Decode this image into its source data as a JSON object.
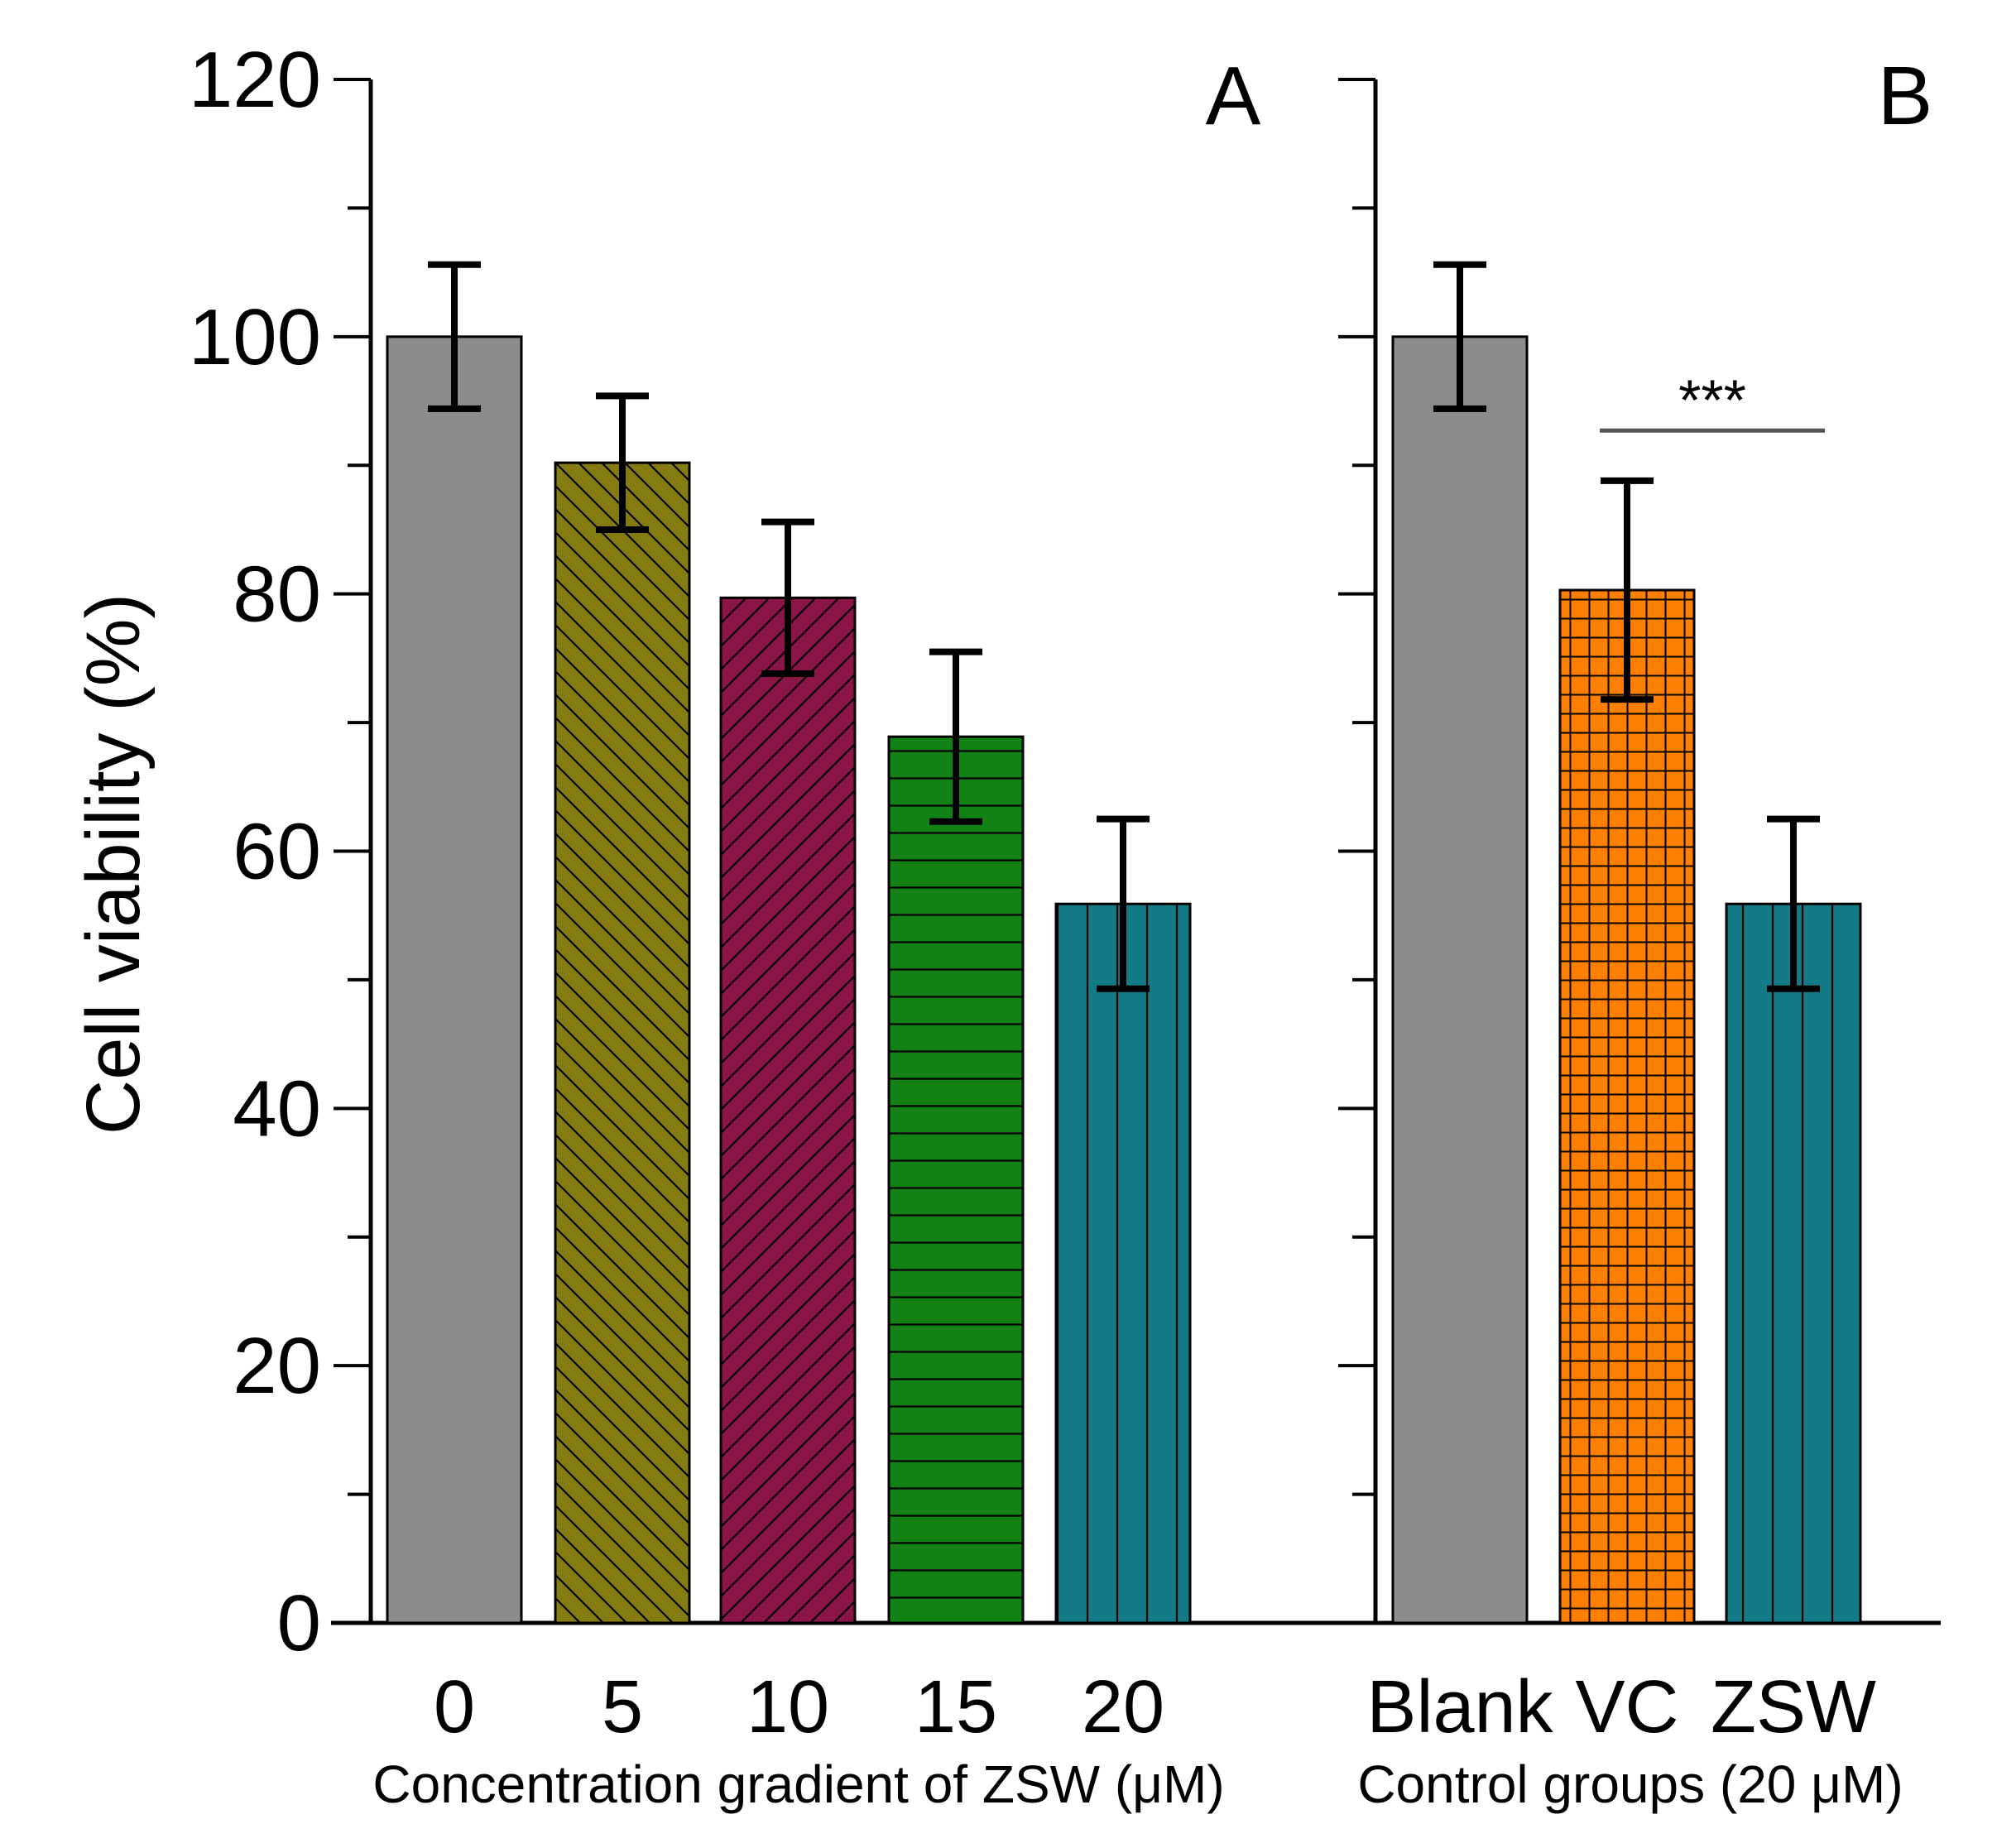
{
  "chart_data": {
    "type": "bar",
    "ylabel": "Cell viability (%)",
    "ylim": [
      0,
      120
    ],
    "yticks": [
      0,
      20,
      40,
      60,
      80,
      100,
      120
    ],
    "ytick_labels": [
      "0",
      "20",
      "40",
      "60",
      "80",
      "100",
      "120"
    ],
    "panels": [
      {
        "id": "A",
        "letter": "A",
        "xlabel": "Concentration gradient of ZSW (μM)",
        "categories": [
          "0",
          "5",
          "10",
          "15",
          "20"
        ],
        "values": [
          100,
          90.2,
          79.7,
          68.9,
          55.9
        ],
        "errors": [
          5.6,
          5.2,
          5.9,
          6.6,
          6.6
        ],
        "colors": [
          "#8c8c8c",
          "#857c11",
          "#8c1548",
          "#128214",
          "#137b85"
        ],
        "patterns": [
          "none",
          "backslash",
          "slash",
          "horizontal",
          "vertical"
        ]
      },
      {
        "id": "B",
        "letter": "B",
        "xlabel": "Control groups (20 μM)",
        "categories": [
          "Blank",
          "VC",
          "ZSW"
        ],
        "values": [
          100,
          80.3,
          55.9
        ],
        "errors": [
          5.6,
          8.5,
          6.6
        ],
        "colors": [
          "#8c8c8c",
          "#ff8000",
          "#137b85"
        ],
        "patterns": [
          "none",
          "grid",
          "vertical"
        ],
        "significance": {
          "from": 1,
          "to": 2,
          "label": "***",
          "y": 92.7
        }
      }
    ]
  }
}
